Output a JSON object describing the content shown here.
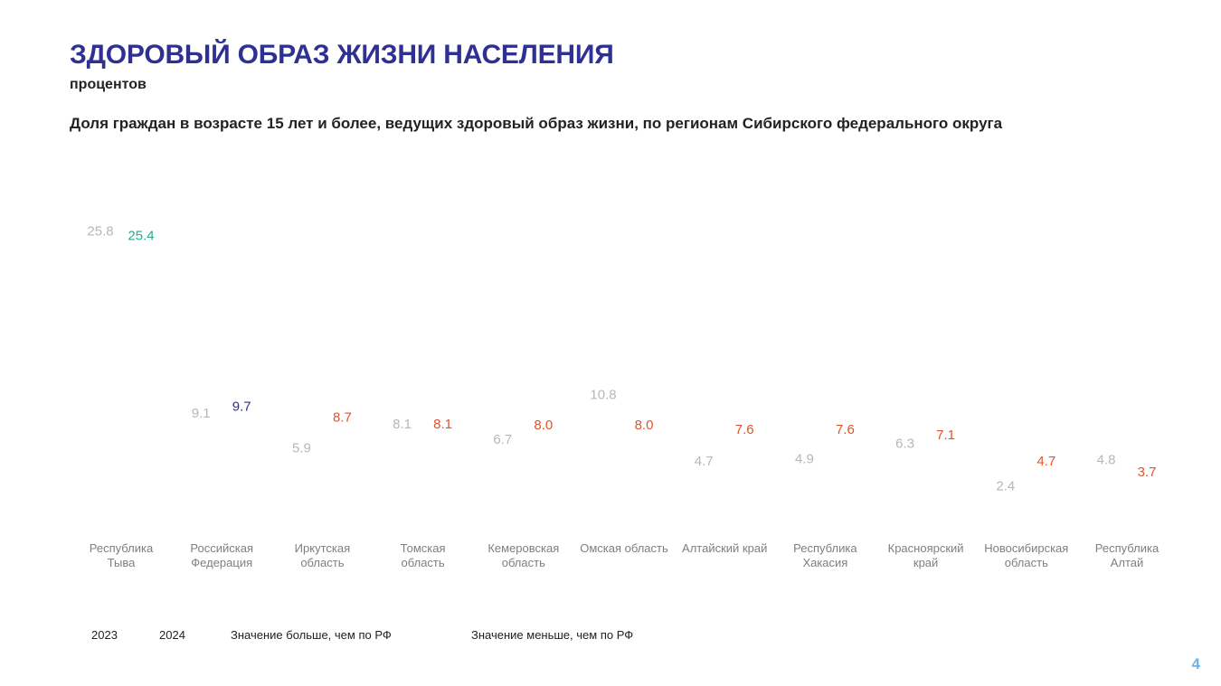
{
  "title": "ЗДОРОВЫЙ ОБРАЗ ЖИЗНИ НАСЕЛЕНИЯ",
  "subtitle": "процентов",
  "chart_title": "Доля граждан в возрасте 15 лет и более, ведущих здоровый образ жизни, по регионам Сибирского федерального округа",
  "page_number": "4",
  "legend": {
    "year_prev": "2023",
    "year_curr": "2024",
    "above_label": "Значение больше, чем по РФ",
    "below_label": "Значение меньше, чем по РФ"
  },
  "colors": {
    "prev_year": "#b7b7b7",
    "above_rf": "#2aaa8a",
    "rf": "#2e3192",
    "below_rf": "#e5512b",
    "category_text": "#7f7f7f"
  },
  "chart_data": {
    "type": "dot",
    "unit": "процентов",
    "categories": [
      [
        "Республика",
        "Тыва"
      ],
      [
        "Российская",
        "Федерация"
      ],
      [
        "Иркутская",
        "область"
      ],
      [
        "Томская",
        "область"
      ],
      [
        "Кемеровская",
        "область"
      ],
      [
        "Омская область"
      ],
      [
        "Алтайский край"
      ],
      [
        "Республика",
        "Хакасия"
      ],
      [
        "Красноярский",
        "край"
      ],
      [
        "Новосибирская",
        "область"
      ],
      [
        "Республика",
        "Алтай"
      ]
    ],
    "series": [
      {
        "name": "2023",
        "values": [
          25.8,
          9.1,
          5.9,
          8.1,
          6.7,
          10.8,
          4.7,
          4.9,
          6.3,
          2.4,
          4.8
        ]
      },
      {
        "name": "2024",
        "values": [
          25.4,
          9.7,
          8.7,
          8.1,
          8.0,
          8.0,
          7.6,
          7.6,
          7.1,
          4.7,
          3.7
        ],
        "status": [
          "above",
          "rf",
          "below",
          "below",
          "below",
          "below",
          "below",
          "below",
          "below",
          "below",
          "below"
        ]
      }
    ],
    "ylim": [
      0,
      27
    ]
  }
}
